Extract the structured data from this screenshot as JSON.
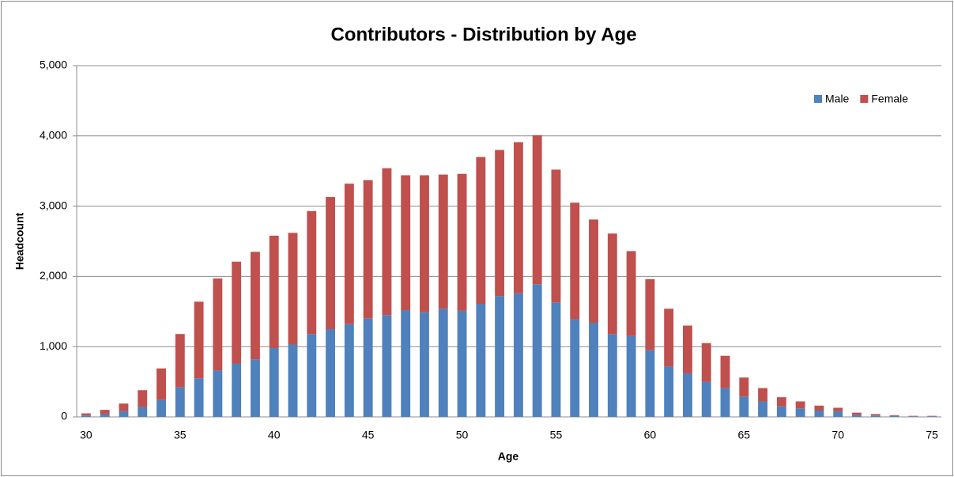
{
  "chart_data": {
    "type": "stacked-bar",
    "title": "Contributors - Distribution by Age",
    "x_label": "Age",
    "y_label": "Headcount",
    "categories": [
      "30",
      null,
      null,
      null,
      null,
      "35",
      null,
      null,
      null,
      null,
      "40",
      null,
      null,
      null,
      null,
      "45",
      null,
      null,
      null,
      null,
      "50",
      null,
      null,
      null,
      null,
      "55",
      null,
      null,
      null,
      null,
      "60",
      null,
      null,
      null,
      null,
      "65",
      null,
      null,
      null,
      null,
      "70",
      null,
      null,
      null,
      null,
      "75"
    ],
    "series": [
      {
        "name": "Male",
        "color": "#4f81bd",
        "values": [
          20,
          40,
          80,
          140,
          240,
          420,
          550,
          660,
          760,
          820,
          980,
          1030,
          1180,
          1250,
          1320,
          1400,
          1450,
          1520,
          1490,
          1540,
          1510,
          1610,
          1720,
          1760,
          1890,
          1630,
          1390,
          1340,
          1180,
          1150,
          950,
          720,
          620,
          500,
          410,
          290,
          220,
          150,
          120,
          90,
          80,
          30,
          20,
          15,
          8,
          8
        ]
      },
      {
        "name": "Female",
        "color": "#c0504d",
        "values": [
          30,
          60,
          110,
          240,
          450,
          760,
          1090,
          1310,
          1450,
          1530,
          1600,
          1590,
          1750,
          1880,
          2000,
          1970,
          2090,
          1920,
          1950,
          1910,
          1950,
          2090,
          2080,
          2150,
          2120,
          1890,
          1660,
          1470,
          1430,
          1210,
          1010,
          820,
          680,
          550,
          460,
          270,
          190,
          130,
          100,
          70,
          50,
          30,
          20,
          10,
          7,
          7
        ]
      }
    ],
    "ylim": [
      0,
      5000
    ],
    "yticks": [
      0,
      {
        "value": 1000,
        "label": "1,000"
      },
      {
        "value": 2000,
        "label": "2,000"
      },
      {
        "value": 3000,
        "label": "3,000"
      },
      {
        "value": 4000,
        "label": "4,000"
      },
      {
        "value": 5000,
        "label": "5,000"
      }
    ],
    "grid": true,
    "legend": "top-right"
  }
}
